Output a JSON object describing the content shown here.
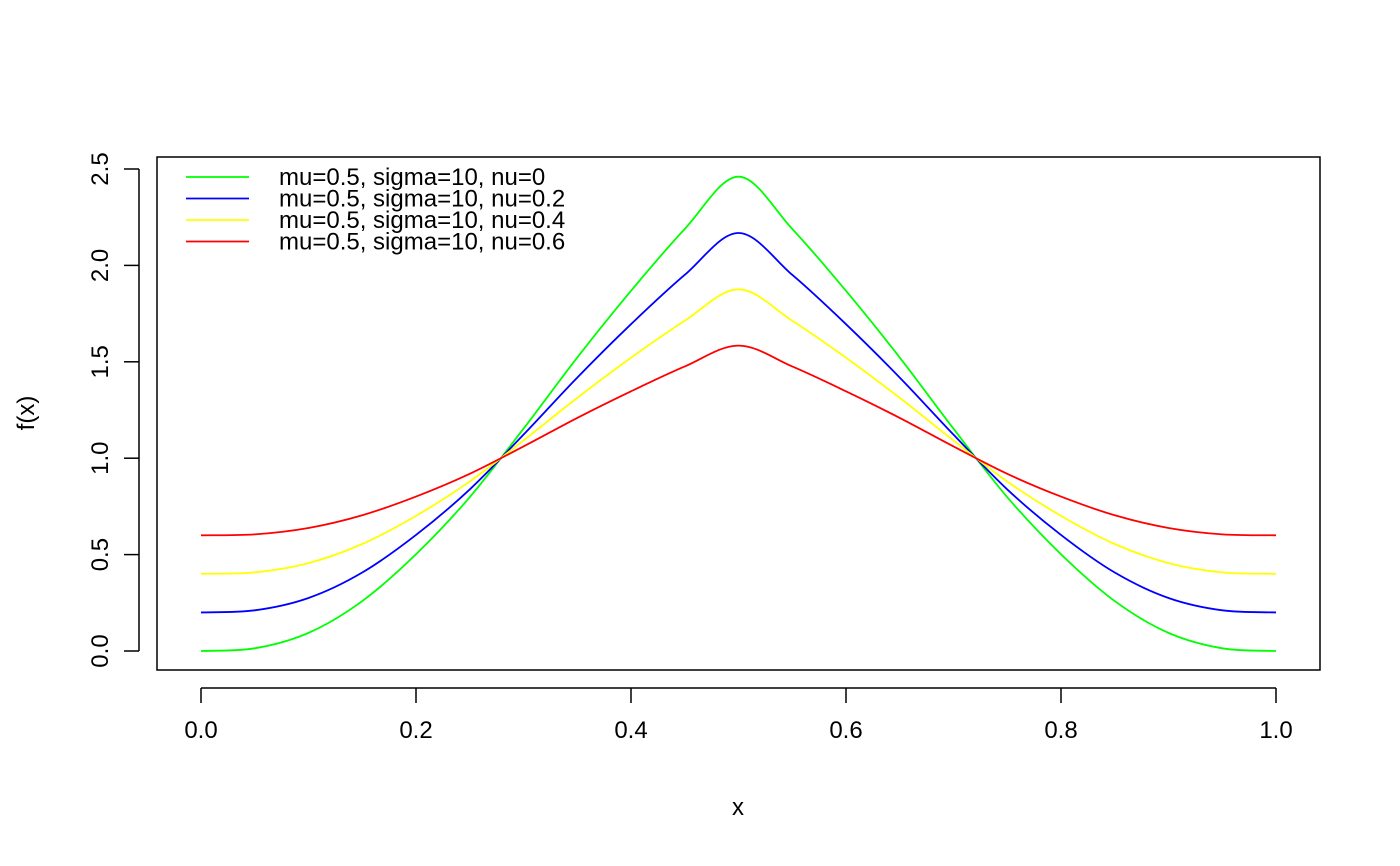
{
  "chart_data": {
    "type": "line",
    "title": "",
    "xlabel": "x",
    "ylabel": "f(x)",
    "xlim": [
      0,
      1
    ],
    "ylim": [
      0,
      2.5
    ],
    "xticks": [
      {
        "value": 0.0,
        "label": "0.0"
      },
      {
        "value": 0.2,
        "label": "0.2"
      },
      {
        "value": 0.4,
        "label": "0.4"
      },
      {
        "value": 0.6,
        "label": "0.6"
      },
      {
        "value": 0.8,
        "label": "0.8"
      },
      {
        "value": 1.0,
        "label": "1.0"
      }
    ],
    "yticks": [
      {
        "value": 0.0,
        "label": "0.0"
      },
      {
        "value": 0.5,
        "label": "0.5"
      },
      {
        "value": 1.0,
        "label": "1.0"
      },
      {
        "value": 1.5,
        "label": "1.5"
      },
      {
        "value": 2.0,
        "label": "2.0"
      },
      {
        "value": 2.5,
        "label": "2.5"
      }
    ],
    "grid": false,
    "legend_position": "top-left",
    "x": [
      0.0,
      0.05,
      0.1,
      0.15,
      0.2,
      0.25,
      0.3,
      0.35,
      0.4,
      0.45,
      0.5,
      0.55,
      0.6,
      0.65,
      0.7,
      0.75,
      0.8,
      0.85,
      0.9,
      0.95,
      1.0
    ],
    "series": [
      {
        "name": "mu=0.5, sigma=10, nu=0",
        "color": "#00ff00",
        "values": [
          0.0,
          0.014,
          0.094,
          0.259,
          0.502,
          0.798,
          1.153,
          1.522,
          1.868,
          2.189,
          2.46,
          2.189,
          1.868,
          1.522,
          1.153,
          0.798,
          0.502,
          0.259,
          0.094,
          0.014,
          0.0
        ]
      },
      {
        "name": "mu=0.5, sigma=10, nu=0.2",
        "color": "#0000ff",
        "values": [
          0.2,
          0.211,
          0.275,
          0.407,
          0.602,
          0.838,
          1.122,
          1.418,
          1.695,
          1.951,
          2.168,
          1.951,
          1.695,
          1.418,
          1.122,
          0.838,
          0.602,
          0.407,
          0.275,
          0.211,
          0.2
        ]
      },
      {
        "name": "mu=0.5, sigma=10, nu=0.4",
        "color": "#ffff00",
        "values": [
          0.4,
          0.408,
          0.456,
          0.555,
          0.701,
          0.879,
          1.092,
          1.313,
          1.521,
          1.713,
          1.876,
          1.713,
          1.521,
          1.313,
          1.092,
          0.879,
          0.701,
          0.555,
          0.456,
          0.408,
          0.4
        ]
      },
      {
        "name": "mu=0.5, sigma=10, nu=0.6",
        "color": "#ff0000",
        "values": [
          0.6,
          0.605,
          0.638,
          0.704,
          0.801,
          0.919,
          1.061,
          1.209,
          1.347,
          1.476,
          1.584,
          1.476,
          1.347,
          1.209,
          1.061,
          0.919,
          0.801,
          0.704,
          0.638,
          0.605,
          0.6
        ]
      }
    ]
  }
}
